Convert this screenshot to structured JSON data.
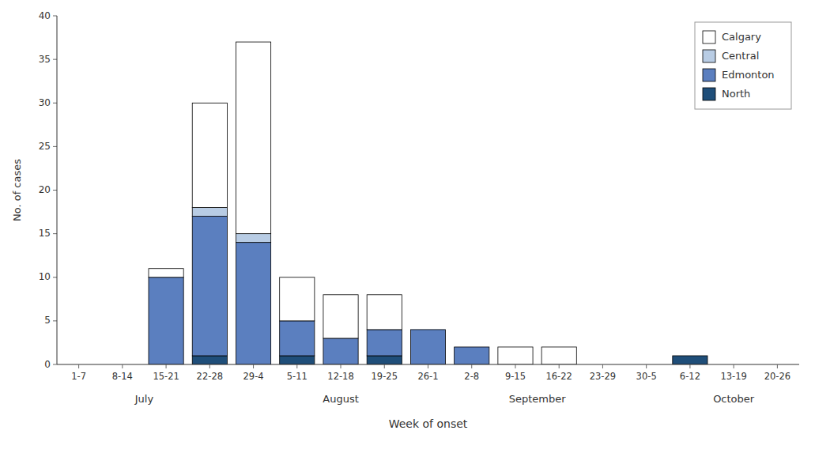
{
  "chart_data": {
    "type": "bar",
    "stacked": true,
    "categories": [
      "1-7",
      "8-14",
      "15-21",
      "22-28",
      "29-4",
      "5-11",
      "12-18",
      "19-25",
      "26-1",
      "2-8",
      "9-15",
      "16-22",
      "23-29",
      "30-5",
      "6-12",
      "13-19",
      "20-26"
    ],
    "series": [
      {
        "name": "North",
        "color": "#1f4e79",
        "values": [
          0,
          0,
          0,
          1,
          0,
          1,
          0,
          1,
          0,
          0,
          0,
          0,
          0,
          0,
          1,
          0,
          0
        ]
      },
      {
        "name": "Edmonton",
        "color": "#5b7fbf",
        "values": [
          0,
          0,
          10,
          16,
          14,
          4,
          3,
          3,
          4,
          2,
          0,
          0,
          0,
          0,
          0,
          0,
          0
        ]
      },
      {
        "name": "Central",
        "color": "#b8cce4",
        "values": [
          0,
          0,
          0,
          1,
          1,
          0,
          0,
          0,
          0,
          0,
          0,
          0,
          0,
          0,
          0,
          0,
          0
        ]
      },
      {
        "name": "Calgary",
        "color": "#ffffff",
        "values": [
          0,
          0,
          1,
          12,
          22,
          5,
          5,
          4,
          0,
          0,
          2,
          2,
          0,
          0,
          0,
          0,
          0
        ]
      }
    ],
    "annotations": [
      {
        "text": "July",
        "x": 1.5
      },
      {
        "text": "August",
        "x": 6.0
      },
      {
        "text": "September",
        "x": 10.5
      },
      {
        "text": "October",
        "x": 15.0
      }
    ],
    "x_label": "Week of onset",
    "y_label": "No. of cases",
    "ylim": [
      0,
      40
    ],
    "yticks": [
      0,
      5,
      10,
      15,
      20,
      25,
      30,
      35,
      40
    ],
    "grid": false,
    "legend": "upper right"
  }
}
